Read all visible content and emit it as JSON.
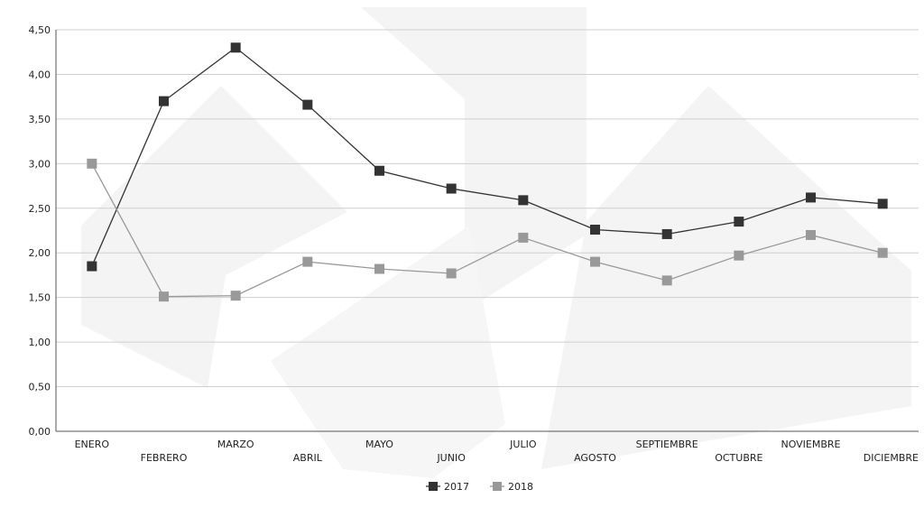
{
  "chart_data": {
    "type": "line",
    "title": "",
    "xlabel": "",
    "ylabel": "",
    "categories": [
      "ENERO",
      "FEBRERO",
      "MARZO",
      "ABRIL",
      "MAYO",
      "JUNIO",
      "JULIO",
      "AGOSTO",
      "SEPTIEMBRE",
      "OCTUBRE",
      "NOVIEMBRE",
      "DICIEMBRE"
    ],
    "ylim": [
      0,
      4.5
    ],
    "yticks": [
      "0,00",
      "0,50",
      "1,00",
      "1,50",
      "2,00",
      "2,50",
      "3,00",
      "3,50",
      "4,00",
      "4,50"
    ],
    "grid": true,
    "legend_position": "bottom",
    "series": [
      {
        "name": "2017",
        "color": "#333333",
        "values": [
          1.85,
          3.7,
          4.3,
          3.66,
          2.92,
          2.72,
          2.59,
          2.26,
          2.21,
          2.35,
          2.62,
          2.55
        ]
      },
      {
        "name": "2018",
        "color": "#999999",
        "values": [
          3.0,
          1.51,
          1.52,
          1.9,
          1.82,
          1.77,
          2.17,
          1.9,
          1.69,
          1.97,
          2.2,
          2.0
        ]
      }
    ]
  }
}
